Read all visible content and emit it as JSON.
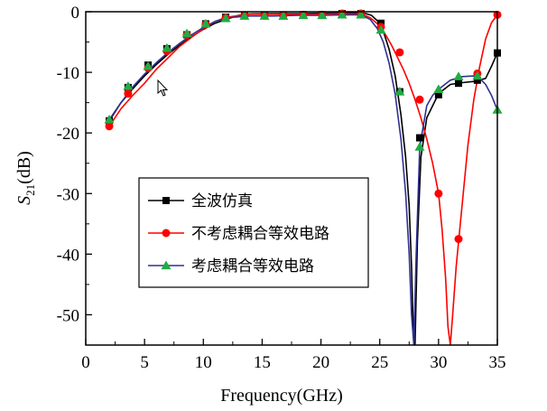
{
  "chart_data": {
    "type": "line",
    "xlabel": "Frequency(GHz)",
    "ylabel_prefix": "S",
    "ylabel_sub": "21",
    "ylabel_suffix": "(dB)",
    "xlim": [
      0,
      35
    ],
    "ylim": [
      -55,
      0
    ],
    "xticks": [
      0,
      5,
      10,
      15,
      20,
      25,
      30,
      35
    ],
    "yticks": [
      0,
      -10,
      -20,
      -30,
      -40,
      -50
    ],
    "grid": false,
    "legend_position": "center-left",
    "series": [
      {
        "name": "全波仿真",
        "color": "#000000",
        "marker": "square",
        "curve_x": [
          2,
          3,
          4,
          5,
          6,
          7,
          8,
          9,
          10,
          11,
          12,
          13,
          14,
          16,
          18,
          20,
          22,
          23,
          23.8,
          24.3,
          24.8,
          25.3,
          25.8,
          26.3,
          26.8,
          27.2,
          27.5,
          27.7,
          27.85,
          28.0,
          28.2,
          28.5,
          29,
          30,
          31,
          32,
          33,
          34,
          34.5,
          35
        ],
        "curve_y": [
          -18,
          -15,
          -12.7,
          -10.6,
          -8.7,
          -7,
          -5.5,
          -4.1,
          -2.9,
          -1.9,
          -1.2,
          -0.6,
          -0.35,
          -0.3,
          -0.3,
          -0.25,
          -0.2,
          -0.2,
          -0.3,
          -0.6,
          -1.5,
          -3.2,
          -6.2,
          -10.5,
          -17,
          -24,
          -32,
          -42,
          -52,
          -55,
          -38,
          -24,
          -17.5,
          -13.5,
          -12,
          -11.7,
          -11.5,
          -11,
          -9,
          -6.8
        ],
        "marker_x": [
          2,
          3.6,
          5.3,
          6.9,
          8.6,
          10.2,
          11.9,
          13.5,
          15.2,
          16.8,
          18.5,
          20.1,
          21.8,
          23.4,
          25.1,
          26.7,
          28.4,
          30.0,
          31.7,
          33.3,
          35
        ],
        "marker_y": [
          -18,
          -12.5,
          -8.8,
          -6.1,
          -3.8,
          -2.0,
          -0.9,
          -0.6,
          -0.6,
          -0.6,
          -0.5,
          -0.5,
          -0.3,
          -0.3,
          -1.9,
          -13.2,
          -20.8,
          -13.7,
          -11.8,
          -11.3,
          -6.8
        ]
      },
      {
        "name": "不考虑耦合等效电路",
        "color": "#ff0000",
        "marker": "circle",
        "curve_x": [
          2,
          3,
          4,
          5,
          6,
          7,
          8,
          9,
          10,
          11,
          12,
          14,
          16,
          18,
          20,
          22,
          23.5,
          24.2,
          24.8,
          25.5,
          26,
          26.5,
          27,
          27.5,
          28,
          28.5,
          29,
          29.5,
          30,
          30.3,
          30.6,
          30.8,
          31.0,
          31.2,
          31.5,
          32,
          32.5,
          33,
          33.5,
          34,
          34.5,
          35
        ],
        "curve_y": [
          -18.9,
          -16,
          -13.8,
          -11.8,
          -9.5,
          -7.6,
          -5.7,
          -4.2,
          -2.8,
          -1.6,
          -0.9,
          -0.4,
          -0.4,
          -0.4,
          -0.4,
          -0.3,
          -0.4,
          -1.0,
          -2.0,
          -3.8,
          -5.5,
          -7.5,
          -9.5,
          -11.8,
          -14.5,
          -17.5,
          -21,
          -25,
          -30,
          -36,
          -44,
          -52,
          -55,
          -50,
          -42,
          -32,
          -22,
          -14.5,
          -9,
          -4.5,
          -1.8,
          -0.5
        ],
        "marker_x": [
          2,
          3.6,
          5.3,
          6.9,
          8.6,
          10.2,
          11.9,
          13.5,
          15.2,
          16.8,
          18.5,
          20.1,
          21.8,
          23.4,
          25.1,
          26.7,
          28.4,
          30.0,
          31.7,
          33.3,
          35
        ],
        "marker_y": [
          -18.9,
          -13.5,
          -9.3,
          -6.5,
          -3.8,
          -2.1,
          -1.0,
          -0.6,
          -0.6,
          -0.6,
          -0.5,
          -0.5,
          -0.3,
          -0.3,
          -2.5,
          -6.7,
          -14.5,
          -30.0,
          -37.5,
          -10.2,
          -0.5
        ]
      },
      {
        "name": "考虑耦合等效电路",
        "color": "#2e3192",
        "marker": "triangle",
        "marker_fill": "#22aa44",
        "curve_x": [
          2,
          3,
          4,
          5,
          6,
          7,
          8,
          9,
          10,
          11,
          12,
          14,
          16,
          18,
          20,
          22,
          23.4,
          24.2,
          24.8,
          25.3,
          25.8,
          26.3,
          26.8,
          27.2,
          27.5,
          27.7,
          27.9,
          28.1,
          28.4,
          29,
          29.5,
          30,
          31,
          32,
          33,
          33.5,
          34,
          34.5,
          35
        ],
        "curve_y": [
          -17.8,
          -15,
          -12.4,
          -10.3,
          -8.4,
          -6.7,
          -5.2,
          -3.8,
          -2.6,
          -1.6,
          -1.0,
          -0.7,
          -0.7,
          -0.6,
          -0.6,
          -0.5,
          -0.5,
          -1.3,
          -2.8,
          -5,
          -8.5,
          -13.5,
          -21,
          -30,
          -40,
          -50,
          -55,
          -40,
          -22.3,
          -15.5,
          -13.8,
          -12.8,
          -11.3,
          -10.7,
          -10.6,
          -11,
          -12,
          -13.8,
          -16.2
        ],
        "marker_x": [
          2,
          3.6,
          5.3,
          6.9,
          8.6,
          10.2,
          11.9,
          13.5,
          15.2,
          16.8,
          18.5,
          20.1,
          21.8,
          23.4,
          25.1,
          26.7,
          28.4,
          30.0,
          31.7,
          33.3,
          35
        ],
        "marker_y": [
          -17.8,
          -12.3,
          -9.0,
          -6.0,
          -3.6,
          -2.0,
          -1.1,
          -0.7,
          -0.7,
          -0.7,
          -0.6,
          -0.6,
          -0.5,
          -0.5,
          -3.0,
          -13.2,
          -22.3,
          -12.8,
          -10.7,
          -10.6,
          -16.2
        ]
      }
    ]
  }
}
